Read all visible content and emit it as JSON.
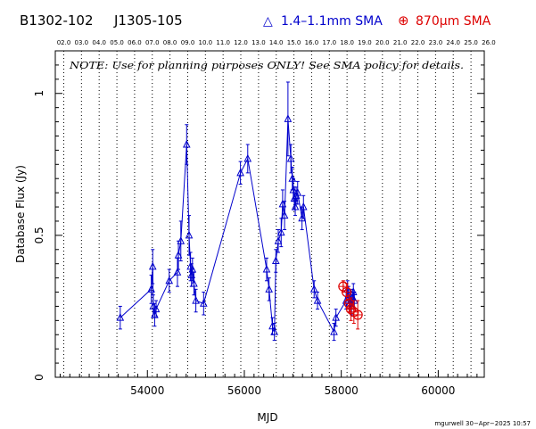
{
  "header": {
    "source1": "B1302-102",
    "source2": "J1305-105",
    "legend_sma_low": "1.4–1.1mm SMA",
    "legend_sma_high": "870μm SMA",
    "legend_sma_low_marker": "△",
    "legend_sma_high_marker": "⊕"
  },
  "note": "NOTE: Use for planning purposes ONLY!  See SMA policy for details.",
  "footer": "mgurwell 30−Apr−2025 10:57",
  "chart_data": {
    "type": "scatter",
    "xlabel": "MJD",
    "ylabel": "Database Flux (Jy)",
    "xlim": [
      52100,
      60950
    ],
    "ylim": [
      0,
      1.15
    ],
    "x_ticks": [
      54000,
      56000,
      58000,
      60000
    ],
    "x_tick_labels": [
      "54000",
      "56000",
      "58000",
      "60000"
    ],
    "y_ticks": [
      0,
      0.5,
      1
    ],
    "y_tick_labels": [
      "0",
      "0.5",
      "1"
    ],
    "top_axis_labels": [
      "02.0",
      "03.0",
      "04.0",
      "05.0",
      "06.0",
      "07.0",
      "08.0",
      "09.0",
      "10.0",
      "11.0",
      "12.0",
      "13.0",
      "14.0",
      "15.0",
      "16.0",
      "17.0",
      "18.0",
      "19.0",
      "20.0",
      "21.0",
      "22.0",
      "23.0",
      "24.0",
      "25.0",
      "26.0"
    ],
    "top_axis_mjd": [
      52275,
      52640,
      53005,
      53371,
      53736,
      54101,
      54466,
      54832,
      55197,
      55562,
      55927,
      56293,
      56658,
      57023,
      57388,
      57754,
      58119,
      58484,
      58849,
      59215,
      59580,
      59945,
      60310,
      60676,
      61041
    ],
    "grid": "vertical dotted lines at each year",
    "colors": {
      "sma_low": "#0000cc",
      "sma_high": "#dd0000"
    },
    "series": [
      {
        "name": "1.4–1.1mm SMA",
        "marker": "triangle",
        "connected": true,
        "points": [
          {
            "x": 53440,
            "y": 0.21,
            "err": 0.04
          },
          {
            "x": 54080,
            "y": 0.31,
            "err": 0.05
          },
          {
            "x": 54110,
            "y": 0.39,
            "err": 0.06
          },
          {
            "x": 54120,
            "y": 0.25,
            "err": 0.04
          },
          {
            "x": 54150,
            "y": 0.22,
            "err": 0.04
          },
          {
            "x": 54180,
            "y": 0.24,
            "err": 0.03
          },
          {
            "x": 54450,
            "y": 0.34,
            "err": 0.04
          },
          {
            "x": 54620,
            "y": 0.37,
            "err": 0.05
          },
          {
            "x": 54640,
            "y": 0.43,
            "err": 0.05
          },
          {
            "x": 54690,
            "y": 0.48,
            "err": 0.07
          },
          {
            "x": 54810,
            "y": 0.82,
            "err": 0.07
          },
          {
            "x": 54860,
            "y": 0.5,
            "err": 0.07
          },
          {
            "x": 54890,
            "y": 0.39,
            "err": 0.05
          },
          {
            "x": 54910,
            "y": 0.36,
            "err": 0.04
          },
          {
            "x": 54930,
            "y": 0.38,
            "err": 0.04
          },
          {
            "x": 54960,
            "y": 0.33,
            "err": 0.04
          },
          {
            "x": 55000,
            "y": 0.27,
            "err": 0.04
          },
          {
            "x": 55160,
            "y": 0.26,
            "err": 0.04
          },
          {
            "x": 55920,
            "y": 0.72,
            "err": 0.04
          },
          {
            "x": 56070,
            "y": 0.77,
            "err": 0.05
          },
          {
            "x": 56460,
            "y": 0.38,
            "err": 0.04
          },
          {
            "x": 56510,
            "y": 0.31,
            "err": 0.04
          },
          {
            "x": 56580,
            "y": 0.18,
            "err": 0.03
          },
          {
            "x": 56620,
            "y": 0.16,
            "err": 0.03
          },
          {
            "x": 56650,
            "y": 0.41,
            "err": 0.04
          },
          {
            "x": 56700,
            "y": 0.48,
            "err": 0.04
          },
          {
            "x": 56760,
            "y": 0.51,
            "err": 0.05
          },
          {
            "x": 56790,
            "y": 0.61,
            "err": 0.05
          },
          {
            "x": 56830,
            "y": 0.57,
            "err": 0.05
          },
          {
            "x": 56900,
            "y": 0.91,
            "err": 0.13
          },
          {
            "x": 56960,
            "y": 0.77,
            "err": 0.05
          },
          {
            "x": 56990,
            "y": 0.7,
            "err": 0.04
          },
          {
            "x": 57010,
            "y": 0.66,
            "err": 0.04
          },
          {
            "x": 57030,
            "y": 0.63,
            "err": 0.04
          },
          {
            "x": 57050,
            "y": 0.6,
            "err": 0.03
          },
          {
            "x": 57070,
            "y": 0.64,
            "err": 0.03
          },
          {
            "x": 57100,
            "y": 0.65,
            "err": 0.04
          },
          {
            "x": 57190,
            "y": 0.56,
            "err": 0.04
          },
          {
            "x": 57220,
            "y": 0.6,
            "err": 0.04
          },
          {
            "x": 57440,
            "y": 0.31,
            "err": 0.03
          },
          {
            "x": 57510,
            "y": 0.27,
            "err": 0.03
          },
          {
            "x": 57850,
            "y": 0.16,
            "err": 0.03
          },
          {
            "x": 57890,
            "y": 0.21,
            "err": 0.03
          },
          {
            "x": 58100,
            "y": 0.27,
            "err": 0.03
          },
          {
            "x": 58130,
            "y": 0.31,
            "err": 0.03
          },
          {
            "x": 58150,
            "y": 0.29,
            "err": 0.03
          },
          {
            "x": 58170,
            "y": 0.26,
            "err": 0.03
          },
          {
            "x": 58190,
            "y": 0.27,
            "err": 0.03
          },
          {
            "x": 58210,
            "y": 0.25,
            "err": 0.03
          },
          {
            "x": 58230,
            "y": 0.28,
            "err": 0.03
          },
          {
            "x": 58250,
            "y": 0.3,
            "err": 0.03
          },
          {
            "x": 58270,
            "y": 0.27,
            "err": 0.03
          }
        ]
      },
      {
        "name": "870μm SMA",
        "marker": "circle-plus",
        "connected": false,
        "points": [
          {
            "x": 58040,
            "y": 0.32,
            "err": 0.02
          },
          {
            "x": 58110,
            "y": 0.3,
            "err": 0.03
          },
          {
            "x": 58160,
            "y": 0.26,
            "err": 0.03
          },
          {
            "x": 58200,
            "y": 0.24,
            "err": 0.04
          },
          {
            "x": 58260,
            "y": 0.23,
            "err": 0.04
          },
          {
            "x": 58340,
            "y": 0.22,
            "err": 0.05
          }
        ]
      }
    ]
  }
}
